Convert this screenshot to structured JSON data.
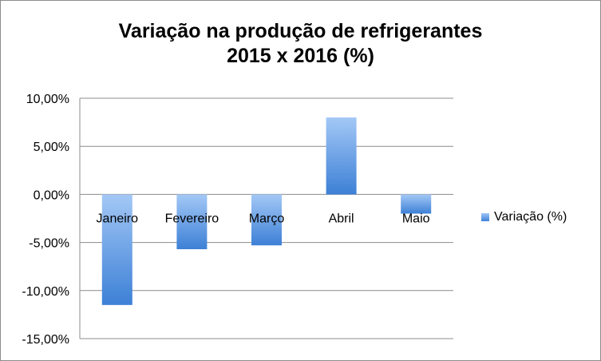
{
  "chart_data": {
    "type": "bar",
    "title": "Variação na produção de refrigerantes",
    "subtitle": "2015 x 2016 (%)",
    "categories": [
      "Janeiro",
      "Fevereiro",
      "Março",
      "Abril",
      "Maio"
    ],
    "series": [
      {
        "name": "Variação (%)",
        "values": [
          -11.5,
          -5.7,
          -5.3,
          8.0,
          -2.0
        ],
        "color": "#4a8ee0"
      }
    ],
    "y_ticks": [
      "10,00%",
      "5,00%",
      "0,00%",
      "-5,00%",
      "-10,00%",
      "-15,00%"
    ],
    "ylim": [
      -15,
      10
    ],
    "grid": true,
    "legend_position": "right"
  }
}
